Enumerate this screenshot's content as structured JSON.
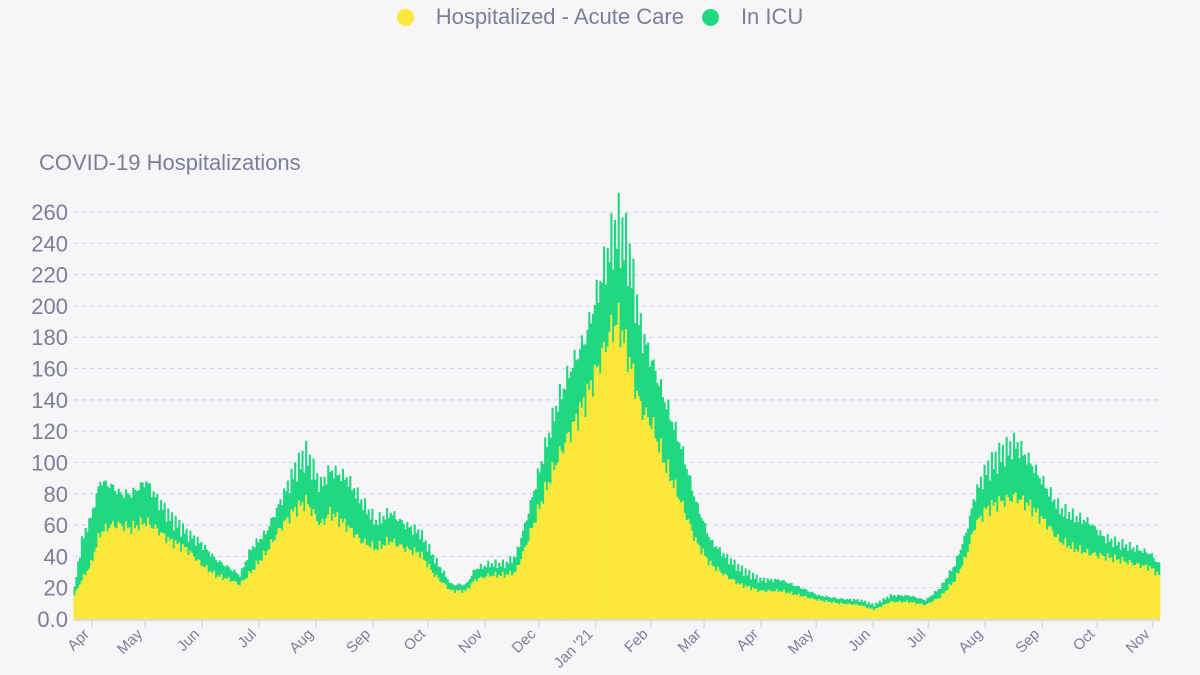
{
  "colors": {
    "acute": "#fbe83a",
    "icu": "#1fd880",
    "grid": "#d3d3ea",
    "text": "#7b7e99",
    "axis": "#d8d8ea"
  },
  "chart_data": {
    "type": "area",
    "stacked": true,
    "title": "COVID-19 Hospitalizations",
    "legend_position": "top-center",
    "legend": [
      "Hospitalized - Acute Care",
      "In ICU"
    ],
    "xlabel": "",
    "ylabel": "",
    "ylim": [
      0,
      260
    ],
    "yticks": [
      "0.0",
      "20",
      "40",
      "60",
      "80",
      "100",
      "120",
      "140",
      "160",
      "180",
      "200",
      "220",
      "240",
      "260"
    ],
    "ytick_values": [
      0,
      20,
      40,
      60,
      80,
      100,
      120,
      140,
      160,
      180,
      200,
      220,
      240,
      260
    ],
    "x_unit": "days since start of series",
    "xlim": [
      0,
      591
    ],
    "xticks": [
      {
        "day": 10,
        "label": "Apr"
      },
      {
        "day": 39,
        "label": "May"
      },
      {
        "day": 70,
        "label": "Jun"
      },
      {
        "day": 101,
        "label": "Jul"
      },
      {
        "day": 132,
        "label": "Aug"
      },
      {
        "day": 163,
        "label": "Sep"
      },
      {
        "day": 193,
        "label": "Oct"
      },
      {
        "day": 224,
        "label": "Nov"
      },
      {
        "day": 253,
        "label": "Dec"
      },
      {
        "day": 284,
        "label": "Jan '21"
      },
      {
        "day": 314,
        "label": "Feb"
      },
      {
        "day": 343,
        "label": "Mar"
      },
      {
        "day": 374,
        "label": "Apr"
      },
      {
        "day": 404,
        "label": "May"
      },
      {
        "day": 435,
        "label": "Jun"
      },
      {
        "day": 465,
        "label": "Jul"
      },
      {
        "day": 496,
        "label": "Aug"
      },
      {
        "day": 527,
        "label": "Sep"
      },
      {
        "day": 557,
        "label": "Oct"
      },
      {
        "day": 587,
        "label": "Nov"
      }
    ],
    "series_columns": [
      "day",
      "acute_care",
      "icu"
    ],
    "points": [
      [
        0,
        15,
        5
      ],
      [
        4,
        25,
        25
      ],
      [
        9,
        35,
        30
      ],
      [
        14,
        55,
        33
      ],
      [
        20,
        60,
        25
      ],
      [
        25,
        60,
        20
      ],
      [
        31,
        58,
        22
      ],
      [
        39,
        62,
        26
      ],
      [
        44,
        58,
        20
      ],
      [
        52,
        50,
        15
      ],
      [
        61,
        45,
        10
      ],
      [
        69,
        35,
        13
      ],
      [
        77,
        28,
        10
      ],
      [
        85,
        25,
        7
      ],
      [
        90,
        22,
        6
      ],
      [
        96,
        30,
        15
      ],
      [
        104,
        42,
        13
      ],
      [
        112,
        58,
        17
      ],
      [
        120,
        70,
        25
      ],
      [
        126,
        75,
        30
      ],
      [
        134,
        60,
        25
      ],
      [
        139,
        68,
        27
      ],
      [
        148,
        60,
        30
      ],
      [
        156,
        50,
        25
      ],
      [
        164,
        45,
        17
      ],
      [
        172,
        50,
        18
      ],
      [
        180,
        45,
        15
      ],
      [
        188,
        42,
        13
      ],
      [
        196,
        28,
        10
      ],
      [
        205,
        18,
        4
      ],
      [
        213,
        18,
        4
      ],
      [
        218,
        25,
        7
      ],
      [
        226,
        28,
        7
      ],
      [
        234,
        28,
        7
      ],
      [
        240,
        30,
        10
      ],
      [
        245,
        45,
        15
      ],
      [
        254,
        75,
        25
      ],
      [
        262,
        100,
        35
      ],
      [
        270,
        120,
        40
      ],
      [
        278,
        140,
        40
      ],
      [
        286,
        165,
        50
      ],
      [
        292,
        185,
        55
      ],
      [
        296,
        190,
        60
      ],
      [
        301,
        170,
        65
      ],
      [
        308,
        135,
        50
      ],
      [
        314,
        125,
        40
      ],
      [
        321,
        100,
        40
      ],
      [
        330,
        75,
        35
      ],
      [
        338,
        50,
        25
      ],
      [
        346,
        35,
        15
      ],
      [
        354,
        28,
        12
      ],
      [
        362,
        22,
        10
      ],
      [
        373,
        18,
        7
      ],
      [
        384,
        18,
        7
      ],
      [
        395,
        15,
        5
      ],
      [
        405,
        12,
        3
      ],
      [
        416,
        10,
        3
      ],
      [
        427,
        9,
        3
      ],
      [
        435,
        6,
        3
      ],
      [
        444,
        11,
        4
      ],
      [
        454,
        11,
        4
      ],
      [
        463,
        9,
        3
      ],
      [
        471,
        14,
        6
      ],
      [
        479,
        25,
        10
      ],
      [
        485,
        40,
        15
      ],
      [
        490,
        60,
        20
      ],
      [
        496,
        70,
        25
      ],
      [
        504,
        75,
        30
      ],
      [
        512,
        78,
        34
      ],
      [
        520,
        72,
        28
      ],
      [
        528,
        62,
        23
      ],
      [
        536,
        50,
        20
      ],
      [
        544,
        45,
        20
      ],
      [
        552,
        42,
        20
      ],
      [
        560,
        40,
        12
      ],
      [
        568,
        38,
        10
      ],
      [
        577,
        35,
        10
      ],
      [
        585,
        33,
        9
      ],
      [
        590,
        28,
        7
      ]
    ]
  }
}
